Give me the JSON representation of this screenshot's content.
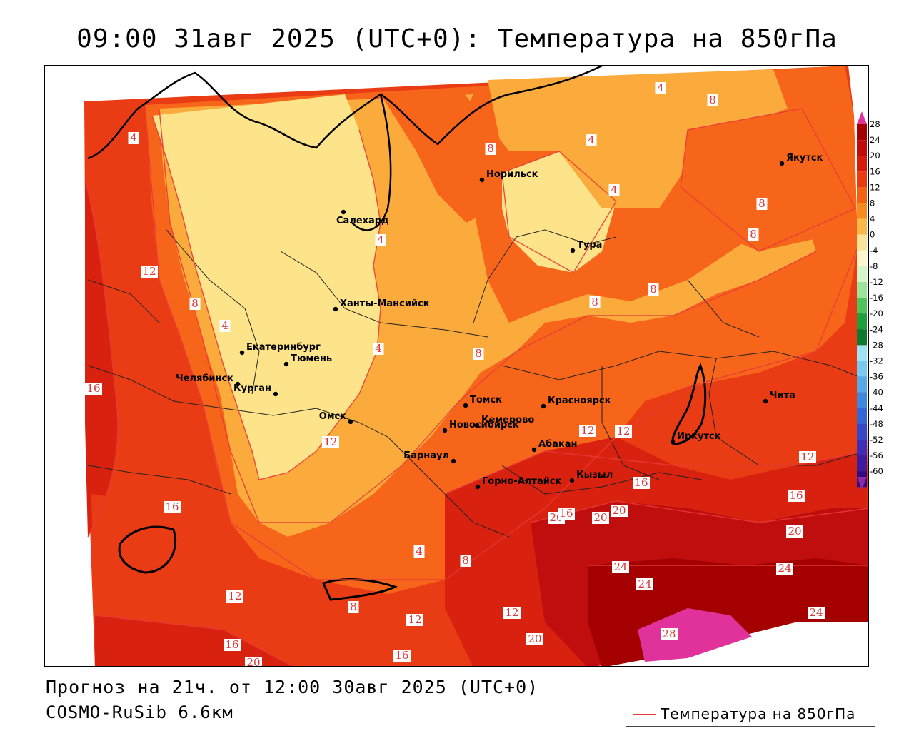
{
  "title": "09:00 31авг 2025 (UTC+0): Температура на 850гПа",
  "footer": {
    "forecast": "Прогноз на 21ч. от 12:00 30авг 2025 (UTC+0)",
    "model": "COSMO-RuSib 6.6км"
  },
  "legend": {
    "label": "Температура на 850гПа",
    "color": "#e83a3a"
  },
  "colorbar": {
    "ticks": [
      "28",
      "24",
      "20",
      "16",
      "12",
      "8",
      "4",
      "0",
      "-4",
      "-8",
      "-12",
      "-16",
      "-20",
      "-24",
      "-28",
      "-32",
      "-36",
      "-40",
      "-44",
      "-48",
      "-52",
      "-56",
      "-60"
    ],
    "colors": [
      "#a50000",
      "#c10a0a",
      "#d81a0a",
      "#ec3a10",
      "#f5620f",
      "#f78b1c",
      "#fbb848",
      "#fde49a",
      "#fff7cc",
      "#d6f5c8",
      "#9ce49a",
      "#4fc45a",
      "#1f9e3c",
      "#0b7a30",
      "#9fe4f4",
      "#79c9f0",
      "#57aaea",
      "#3f88e0",
      "#3267d5",
      "#3548c6",
      "#3e2eb5",
      "#3a1c9c",
      "#2c0c80"
    ],
    "top_color": "#e0329a",
    "bottom_color": "#8a2ba8"
  },
  "cities": [
    {
      "name": "Якутск"
    },
    {
      "name": "Норильск"
    },
    {
      "name": "Салехард"
    },
    {
      "name": "Тура"
    },
    {
      "name": "Ханты-Мансийск"
    },
    {
      "name": "Екатеринбург"
    },
    {
      "name": "Тюмень"
    },
    {
      "name": "Челябинск"
    },
    {
      "name": "Курган"
    },
    {
      "name": "Омск"
    },
    {
      "name": "Новосибирск"
    },
    {
      "name": "Томск"
    },
    {
      "name": "Кемерово"
    },
    {
      "name": "Красноярск"
    },
    {
      "name": "Барнаул"
    },
    {
      "name": "Абакан"
    },
    {
      "name": "Горно-Алтайск"
    },
    {
      "name": "Кызыл"
    },
    {
      "name": "Иркутск"
    },
    {
      "name": "Чита"
    }
  ],
  "contour_labels": [
    "4",
    "8",
    "4",
    "8",
    "4",
    "4",
    "8",
    "12",
    "8",
    "4",
    "4",
    "16",
    "4",
    "8",
    "8",
    "8",
    "8",
    "12",
    "16",
    "12",
    "12",
    "16",
    "16",
    "12",
    "20",
    "20",
    "20",
    "20",
    "24",
    "24",
    "24",
    "24",
    "12",
    "8",
    "8",
    "4",
    "12",
    "12",
    "16",
    "20",
    "16",
    "16",
    "28",
    "20"
  ]
}
